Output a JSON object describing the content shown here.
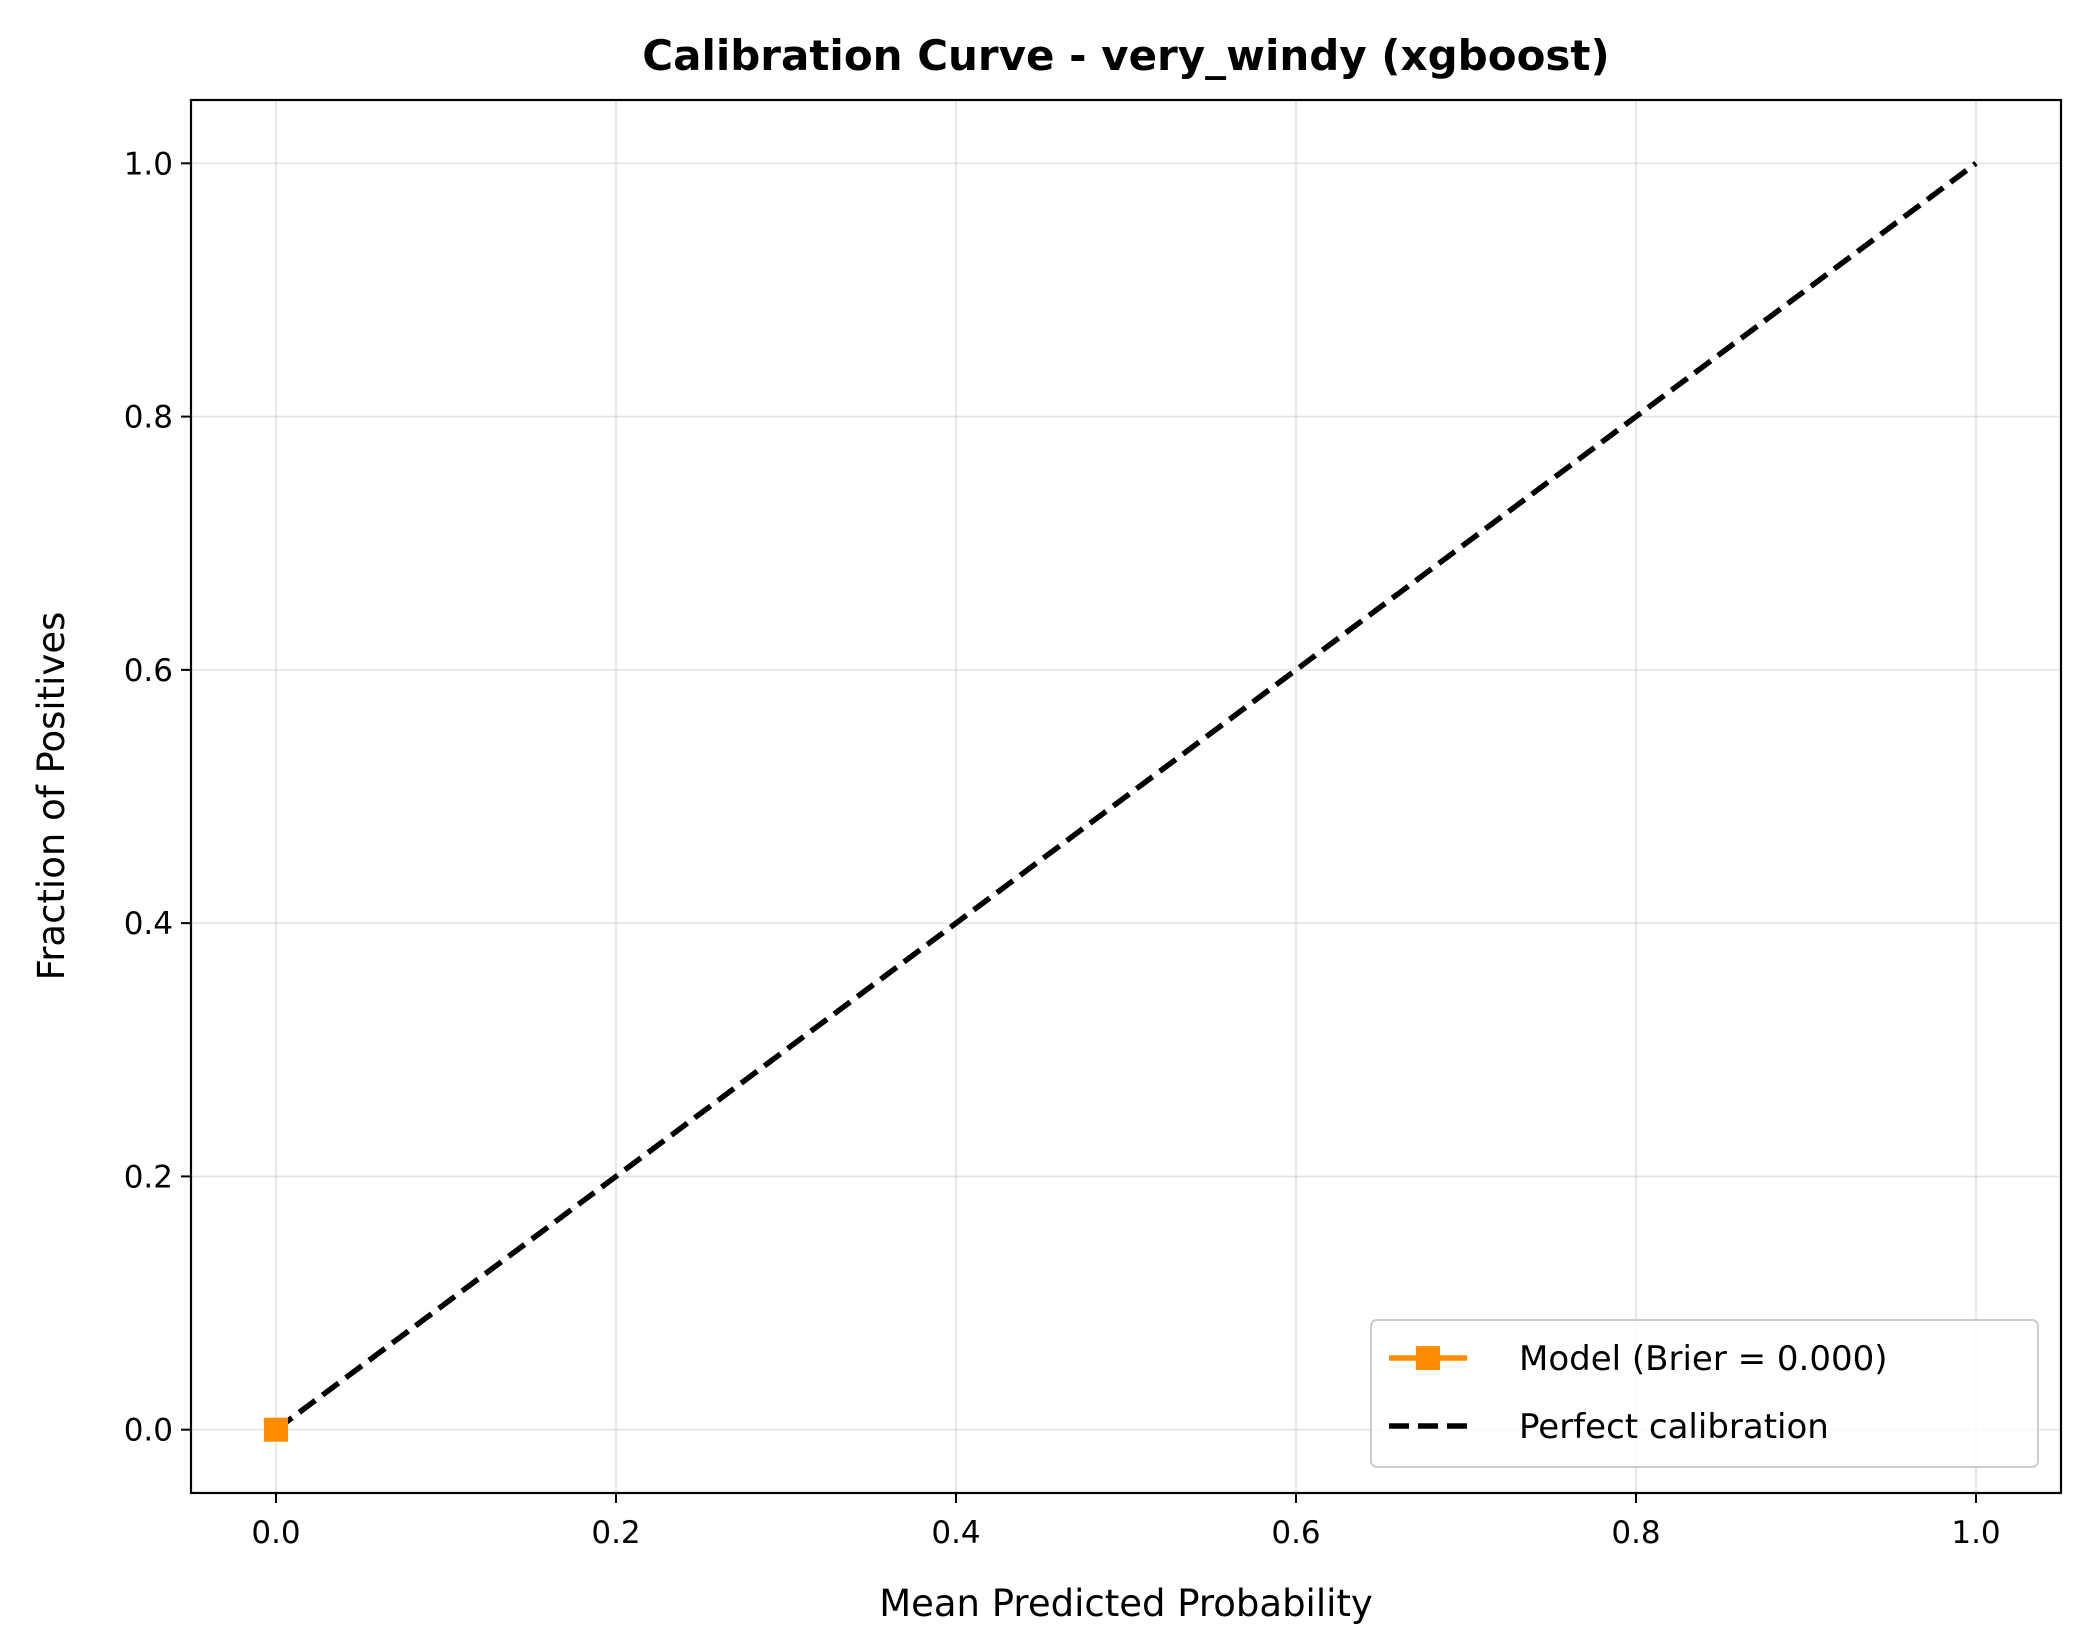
{
  "chart_data": {
    "type": "line",
    "title": "Calibration Curve - very_windy (xgboost)",
    "xlabel": "Mean Predicted Probability",
    "ylabel": "Fraction of Positives",
    "xlim": [
      -0.05,
      1.05
    ],
    "ylim": [
      -0.05,
      1.05
    ],
    "xticks": [
      "0.0",
      "0.2",
      "0.4",
      "0.6",
      "0.8",
      "1.0"
    ],
    "yticks": [
      "0.0",
      "0.2",
      "0.4",
      "0.6",
      "0.8",
      "1.0"
    ],
    "grid": true,
    "legend_position": "lower-right",
    "series": [
      {
        "name": "Model (Brier = 0.000)",
        "color": "#ff8c00",
        "marker": "square",
        "line_style": "solid",
        "x": [
          0.0
        ],
        "y": [
          0.0
        ]
      },
      {
        "name": "Perfect calibration",
        "color": "#000000",
        "marker": "none",
        "line_style": "dashed",
        "x": [
          0.0,
          1.0
        ],
        "y": [
          0.0,
          1.0
        ]
      }
    ]
  }
}
